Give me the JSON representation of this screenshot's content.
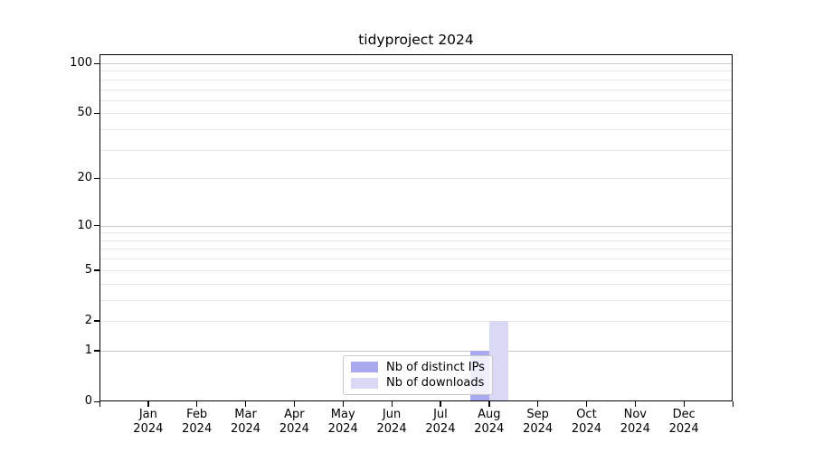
{
  "chart_data": {
    "type": "bar",
    "title": "tidyproject 2024",
    "x_categories": [
      "Jan",
      "Feb",
      "Mar",
      "Apr",
      "May",
      "Jun",
      "Jul",
      "Aug",
      "Sep",
      "Oct",
      "Nov",
      "Dec"
    ],
    "x_year": "2024",
    "series": [
      {
        "name": "Nb of distinct IPs",
        "color": "#a9a9ef",
        "values": [
          0,
          0,
          0,
          0,
          0,
          0,
          0,
          1,
          0,
          0,
          0,
          0
        ]
      },
      {
        "name": "Nb of downloads",
        "color": "#d9d9f6",
        "values": [
          0,
          0,
          0,
          0,
          0,
          0,
          0,
          2,
          0,
          0,
          0,
          0
        ]
      }
    ],
    "y_scale": "log10(1+v)",
    "ylim": [
      0,
      113
    ],
    "y_tick_labels": [
      0,
      1,
      2,
      5,
      10,
      20,
      50,
      100
    ],
    "y_gridlines_major": [
      1,
      10,
      100
    ],
    "y_gridlines_minor": [
      2,
      3,
      4,
      5,
      6,
      7,
      8,
      9,
      20,
      30,
      40,
      50,
      60,
      70,
      80,
      90
    ],
    "grid": "horizontal",
    "legend_position": "lower center"
  },
  "colors": {
    "axis": "#000000",
    "grid_major": "#c9c9c9",
    "grid_minor": "#e8e8e8",
    "legend_border": "#c8c8c8",
    "background": "#ffffff"
  }
}
